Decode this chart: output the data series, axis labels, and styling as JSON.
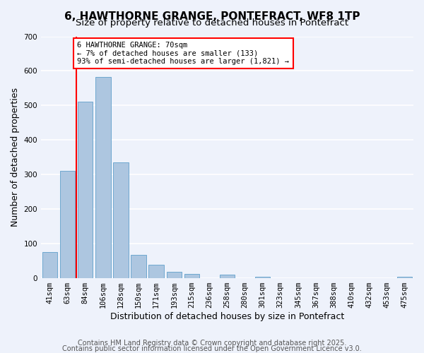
{
  "title": "6, HAWTHORNE GRANGE, PONTEFRACT, WF8 1TP",
  "subtitle": "Size of property relative to detached houses in Pontefract",
  "xlabel": "Distribution of detached houses by size in Pontefract",
  "ylabel": "Number of detached properties",
  "bar_labels": [
    "41sqm",
    "63sqm",
    "84sqm",
    "106sqm",
    "128sqm",
    "150sqm",
    "171sqm",
    "193sqm",
    "215sqm",
    "236sqm",
    "258sqm",
    "280sqm",
    "301sqm",
    "323sqm",
    "345sqm",
    "367sqm",
    "388sqm",
    "410sqm",
    "432sqm",
    "453sqm",
    "475sqm"
  ],
  "bar_values": [
    75,
    311,
    511,
    583,
    335,
    68,
    40,
    19,
    13,
    0,
    11,
    0,
    5,
    0,
    0,
    0,
    0,
    0,
    0,
    0,
    4
  ],
  "bar_color": "#adc6e0",
  "bar_edgecolor": "#6fa8d0",
  "ylim": [
    0,
    700
  ],
  "yticks": [
    0,
    100,
    200,
    300,
    400,
    500,
    600,
    700
  ],
  "property_line_label": "6 HAWTHORNE GRANGE: 70sqm",
  "annotation_line1": "← 7% of detached houses are smaller (133)",
  "annotation_line2": "93% of semi-detached houses are larger (1,821) →",
  "footer1": "Contains HM Land Registry data © Crown copyright and database right 2025.",
  "footer2": "Contains public sector information licensed under the Open Government Licence v3.0.",
  "background_color": "#eef2fb",
  "grid_color": "#ffffff",
  "title_fontsize": 11,
  "subtitle_fontsize": 9.5,
  "tick_fontsize": 7.5,
  "label_fontsize": 9,
  "footer_fontsize": 7,
  "red_line_x": 1.5
}
